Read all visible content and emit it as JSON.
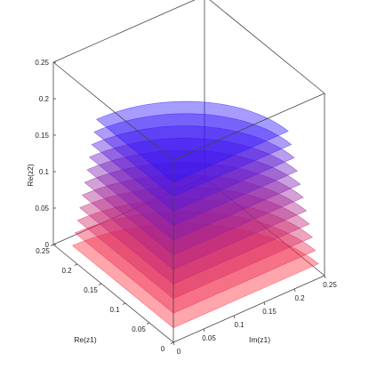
{
  "chart_data": {
    "type": "surface",
    "title": "",
    "xlabel": "Re(z1)",
    "ylabel": "Im(z1)",
    "zlabel": "Re(z2)",
    "xlim": [
      0,
      0.25
    ],
    "ylim": [
      0,
      0.25
    ],
    "zlim": [
      0,
      0.25
    ],
    "x_ticks": [
      "0",
      "0.05",
      "0.1",
      "0.15",
      "0.2",
      "0.25"
    ],
    "y_ticks": [
      "0",
      "0.05",
      "0.1",
      "0.15",
      "0.2",
      "0.25"
    ],
    "z_ticks": [
      "0",
      "0.05",
      "0.1",
      "0.15",
      "0.2",
      "0.25"
    ],
    "grid": false,
    "box": true,
    "colormap": [
      "#ff2a3a",
      "#2a14ff"
    ],
    "layers": [
      {
        "level": 0.02,
        "re_radius": 0.21,
        "im_radius": 0.24
      },
      {
        "level": 0.04,
        "re_radius": 0.205,
        "im_radius": 0.235
      },
      {
        "level": 0.06,
        "re_radius": 0.2,
        "im_radius": 0.23
      },
      {
        "level": 0.08,
        "re_radius": 0.195,
        "im_radius": 0.225
      },
      {
        "level": 0.1,
        "re_radius": 0.19,
        "im_radius": 0.22
      },
      {
        "level": 0.12,
        "re_radius": 0.185,
        "im_radius": 0.215
      },
      {
        "level": 0.14,
        "re_radius": 0.18,
        "im_radius": 0.21
      },
      {
        "level": 0.16,
        "re_radius": 0.175,
        "im_radius": 0.205
      },
      {
        "level": 0.18,
        "re_radius": 0.17,
        "im_radius": 0.2
      },
      {
        "level": 0.2,
        "re_radius": 0.165,
        "im_radius": 0.195
      },
      {
        "level": 0.22,
        "re_radius": 0.16,
        "im_radius": 0.19
      }
    ]
  }
}
